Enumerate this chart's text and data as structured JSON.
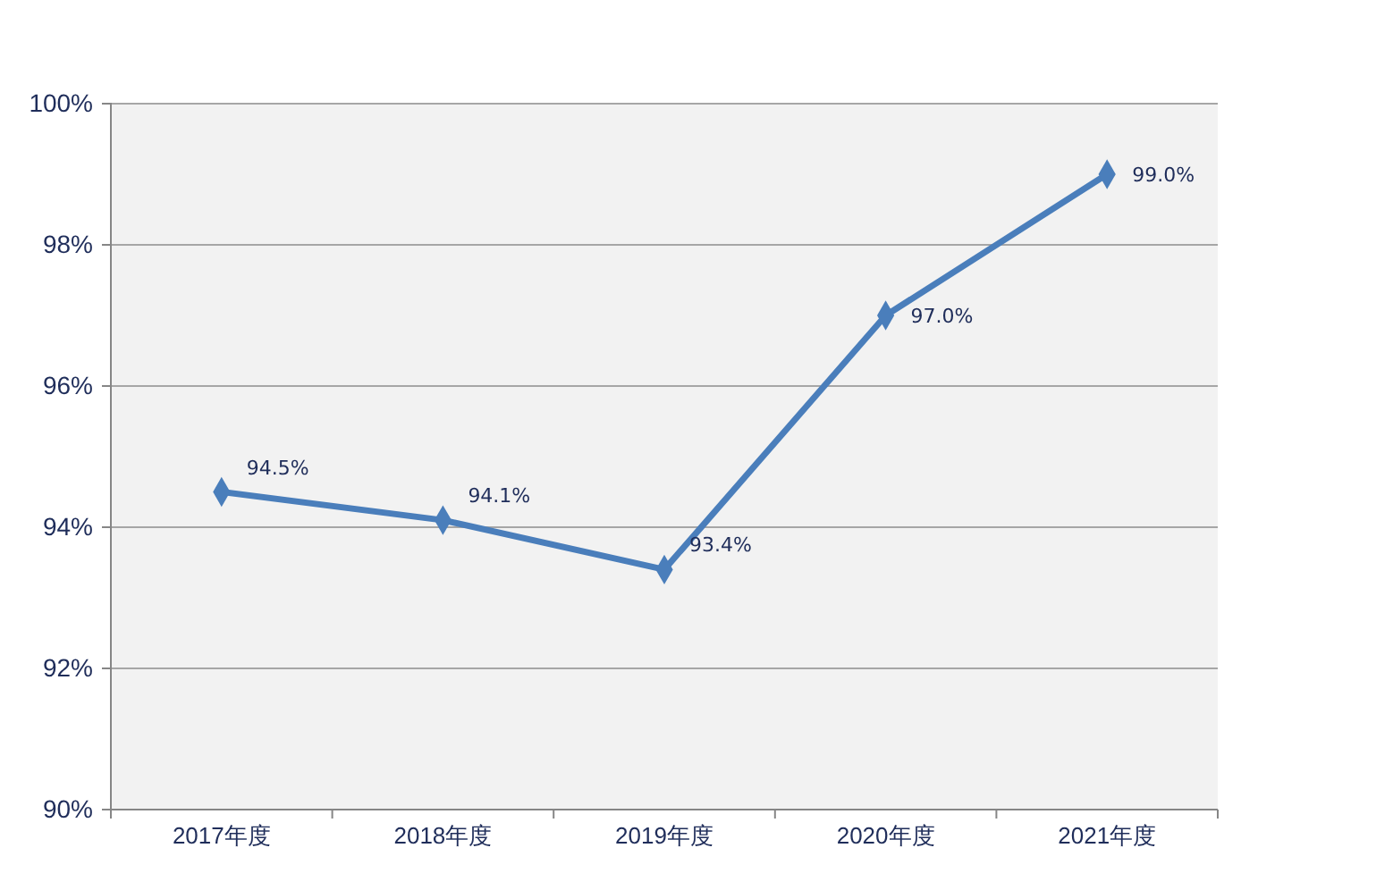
{
  "chart_data": {
    "type": "line",
    "categories": [
      "2017年度",
      "2018年度",
      "2019年度",
      "2020年度",
      "2021年度"
    ],
    "series": [
      {
        "color": "#4a7ebb",
        "values": [
          94.5,
          94.1,
          93.4,
          97.0,
          99.0
        ],
        "value_labels": [
          "94.5%",
          "94.1%",
          "93.4%",
          "97.0%",
          "99.0%"
        ]
      }
    ],
    "ylim": [
      90,
      100
    ],
    "yticks": [
      {
        "value": 90,
        "label": "90%"
      },
      {
        "value": 92,
        "label": "92%"
      },
      {
        "value": 94,
        "label": "94%"
      },
      {
        "value": 96,
        "label": "96%"
      },
      {
        "value": 98,
        "label": "98%"
      },
      {
        "value": 100,
        "label": "100%"
      }
    ],
    "grid": "y",
    "marker": "diamond",
    "line_style": "solid"
  }
}
